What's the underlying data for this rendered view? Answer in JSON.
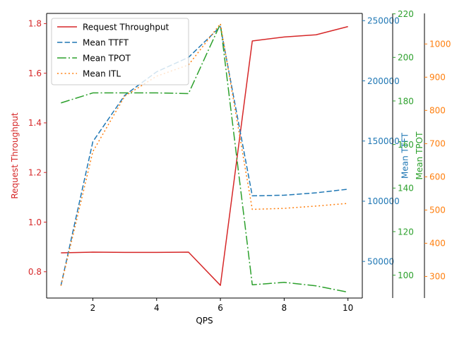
{
  "chart_data": {
    "type": "line",
    "xlabel": "QPS",
    "x": [
      1,
      2,
      3,
      4,
      5,
      6,
      7,
      8,
      9,
      10
    ],
    "xlim": [
      0.55,
      10.45
    ],
    "xticks": [
      2,
      4,
      6,
      8,
      10
    ],
    "grid": false,
    "legend_position": "top-left",
    "axes": [
      {
        "id": "throughput",
        "side": "left",
        "label": "Request Throughput",
        "color": "#d62728",
        "ylim": [
          0.694,
          1.841
        ],
        "ticks": [
          0.8,
          1.0,
          1.2,
          1.4,
          1.6,
          1.8
        ],
        "tick_labels": [
          "0.8",
          "1.0",
          "1.2",
          "1.4",
          "1.6",
          "1.8"
        ]
      },
      {
        "id": "ttft",
        "side": "right",
        "offset": 0,
        "label": "Mean TTFT",
        "color": "#1f77b4",
        "ylim": [
          19600,
          256000
        ],
        "ticks": [
          50000,
          100000,
          150000,
          200000,
          250000
        ],
        "tick_labels": [
          "50000",
          "100000",
          "150000",
          "200000",
          "250000"
        ]
      },
      {
        "id": "tpot",
        "side": "right",
        "offset": 1,
        "label": "Mean TPOT",
        "color": "#2ca02c",
        "ylim": [
          89.5,
          220.2
        ],
        "ticks": [
          100,
          120,
          140,
          160,
          180,
          200,
          220
        ],
        "tick_labels": [
          "100",
          "120",
          "140",
          "160",
          "180",
          "200",
          "220"
        ]
      },
      {
        "id": "itl",
        "side": "right",
        "offset": 2,
        "label": "Mean ITL",
        "color": "#ff7f0e",
        "ylim": [
          235,
          1092
        ],
        "ticks": [
          300,
          400,
          500,
          600,
          700,
          800,
          900,
          1000
        ],
        "tick_labels": [
          "300",
          "400",
          "500",
          "600",
          "700",
          "800",
          "900",
          "1000"
        ]
      }
    ],
    "series": [
      {
        "name": "Request Throughput",
        "axis": "throughput",
        "color": "#d62728",
        "style": "solid",
        "values": [
          0.876,
          0.879,
          0.878,
          0.878,
          0.879,
          0.745,
          1.73,
          1.746,
          1.755,
          1.788
        ]
      },
      {
        "name": "Mean TTFT",
        "axis": "ttft",
        "color": "#1f77b4",
        "style": "dashed",
        "values": [
          30100,
          149500,
          188000,
          207500,
          219500,
          245000,
          104500,
          105000,
          107000,
          110000
        ]
      },
      {
        "name": "Mean TPOT",
        "axis": "tpot",
        "color": "#2ca02c",
        "style": "dashdot",
        "values": [
          179.1,
          183.7,
          183.7,
          183.7,
          183.4,
          215.4,
          95.6,
          96.7,
          95.1,
          92.2
        ]
      },
      {
        "name": "Mean ITL",
        "axis": "itl",
        "color": "#ff7f0e",
        "style": "dotted",
        "values": [
          272,
          676,
          843,
          903,
          937,
          1061,
          502,
          505,
          512,
          520
        ]
      }
    ]
  }
}
